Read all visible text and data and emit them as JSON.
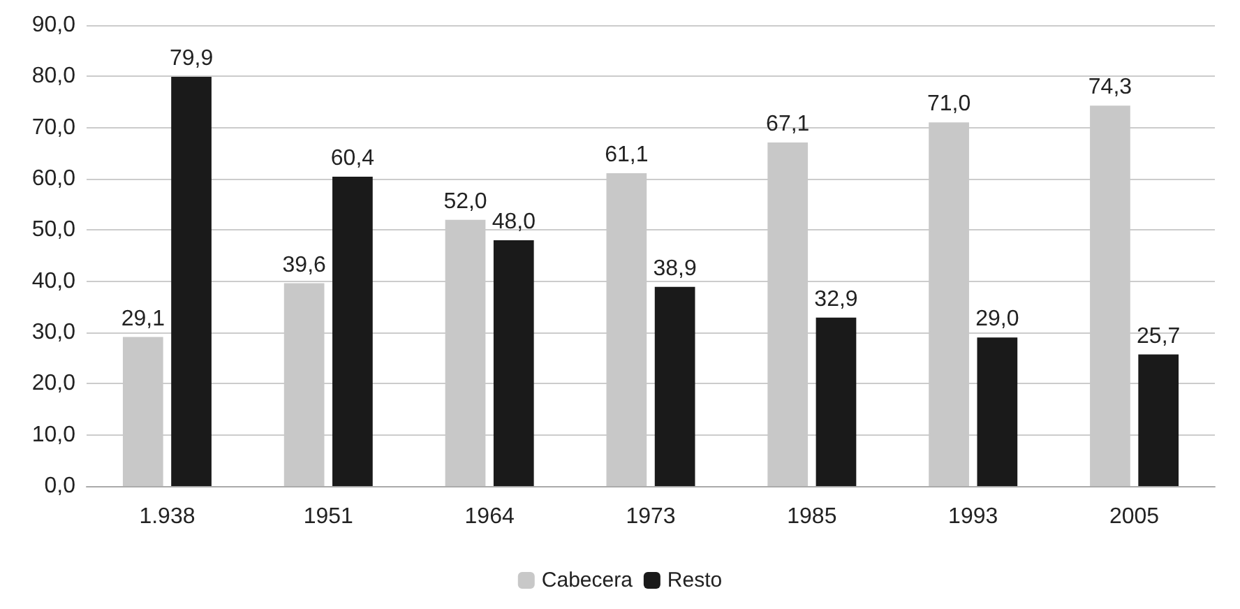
{
  "chart_data": {
    "type": "bar",
    "categories": [
      "1.938",
      "1951",
      "1964",
      "1973",
      "1985",
      "1993",
      "2005"
    ],
    "series": [
      {
        "name": "Cabecera",
        "color": "#c8c8c8",
        "values": [
          29.1,
          39.6,
          52.0,
          61.1,
          67.1,
          71.0,
          74.3
        ],
        "value_labels": [
          "29,1",
          "39,6",
          "52,0",
          "61,1",
          "67,1",
          "71,0",
          "74,3"
        ]
      },
      {
        "name": "Resto",
        "color": "#1a1a1a",
        "values": [
          79.9,
          60.4,
          48.0,
          38.9,
          32.9,
          29.0,
          25.7
        ],
        "value_labels": [
          "79,9",
          "60,4",
          "48,0",
          "38,9",
          "32,9",
          "29,0",
          "25,7"
        ]
      }
    ],
    "ylim": [
      0,
      90
    ],
    "yticks": [
      {
        "value": 0,
        "label": "0,0"
      },
      {
        "value": 10,
        "label": "10,0"
      },
      {
        "value": 20,
        "label": "20,0"
      },
      {
        "value": 30,
        "label": "30,0"
      },
      {
        "value": 40,
        "label": "40,0"
      },
      {
        "value": 50,
        "label": "50,0"
      },
      {
        "value": 60,
        "label": "60,0"
      },
      {
        "value": 70,
        "label": "70,0"
      },
      {
        "value": 80,
        "label": "80,0"
      },
      {
        "value": 90,
        "label": "90,0"
      }
    ],
    "grid": "y",
    "legend": "bottom"
  }
}
